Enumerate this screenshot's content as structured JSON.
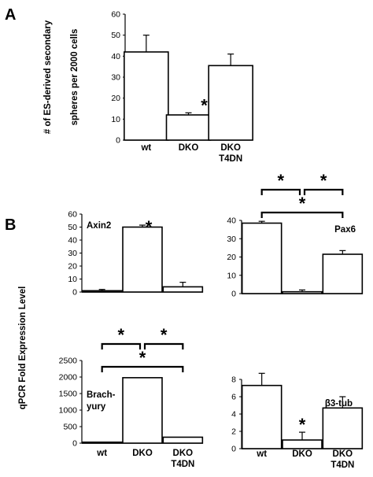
{
  "panels": {
    "a": "A",
    "b": "B"
  },
  "sig_symbol": "*",
  "chart_data": [
    {
      "id": "A",
      "type": "bar",
      "categories": [
        "wt",
        "DKO",
        "DKO T4DN"
      ],
      "category_lines": [
        [
          "wt"
        ],
        [
          "DKO"
        ],
        [
          "DKO",
          "T4DN"
        ]
      ],
      "values": [
        42,
        12,
        35.5
      ],
      "errors": [
        8,
        1,
        5.5
      ],
      "ylabel_lines": [
        "# of ES-derived secondary",
        "spheres per 2000 cells"
      ],
      "ylim": [
        0,
        60
      ],
      "yticks": [
        0,
        10,
        20,
        30,
        40,
        50,
        60
      ],
      "significance": [
        "DKO"
      ]
    },
    {
      "id": "B-Axin2",
      "type": "bar",
      "label": "Axin2",
      "categories": [
        "wt",
        "DKO",
        "DKO T4DN"
      ],
      "values": [
        1,
        50,
        4
      ],
      "errors": [
        1,
        1.5,
        3.5
      ],
      "ylim": [
        0,
        60
      ],
      "yticks": [
        0,
        10,
        20,
        30,
        40,
        50,
        60
      ],
      "significance": [
        "DKO"
      ]
    },
    {
      "id": "B-Pax6",
      "type": "bar",
      "label": "Pax6",
      "categories": [
        "wt",
        "DKO",
        "DKO T4DN"
      ],
      "values": [
        38.5,
        1,
        21.5
      ],
      "errors": [
        1,
        1,
        2
      ],
      "ylim": [
        0,
        40
      ],
      "yticks": [
        0,
        10,
        20,
        30,
        40
      ],
      "brackets": [
        [
          "wt",
          "DKO"
        ],
        [
          "DKO",
          "DKO T4DN"
        ],
        [
          "wt",
          "DKO T4DN"
        ]
      ]
    },
    {
      "id": "B-Brachyury",
      "type": "bar",
      "label_lines": [
        "Brach-",
        "yury"
      ],
      "categories": [
        "wt",
        "DKO",
        "DKO T4DN"
      ],
      "category_lines": [
        [
          "wt"
        ],
        [
          "DKO"
        ],
        [
          "DKO",
          "T4DN"
        ]
      ],
      "values": [
        30,
        1980,
        180
      ],
      "errors": [
        0,
        0,
        0
      ],
      "ylim": [
        0,
        2500
      ],
      "yticks": [
        0,
        500,
        1000,
        1500,
        2000,
        2500
      ],
      "brackets": [
        [
          "wt",
          "DKO"
        ],
        [
          "DKO",
          "DKO T4DN"
        ],
        [
          "wt",
          "DKO T4DN"
        ]
      ]
    },
    {
      "id": "B-b3tub",
      "type": "bar",
      "label": "β3-tub",
      "categories": [
        "wt",
        "DKO",
        "DKO T4DN"
      ],
      "category_lines": [
        [
          "wt"
        ],
        [
          "DKO"
        ],
        [
          "DKO",
          "T4DN"
        ]
      ],
      "values": [
        7.3,
        1,
        4.7
      ],
      "errors": [
        1.4,
        0.9,
        1.3
      ],
      "ylim": [
        0,
        8
      ],
      "yticks": [
        0,
        2,
        4,
        6,
        8
      ],
      "significance": [
        "DKO"
      ]
    }
  ],
  "shared_ylabel": "qPCR Fold Expression Level"
}
